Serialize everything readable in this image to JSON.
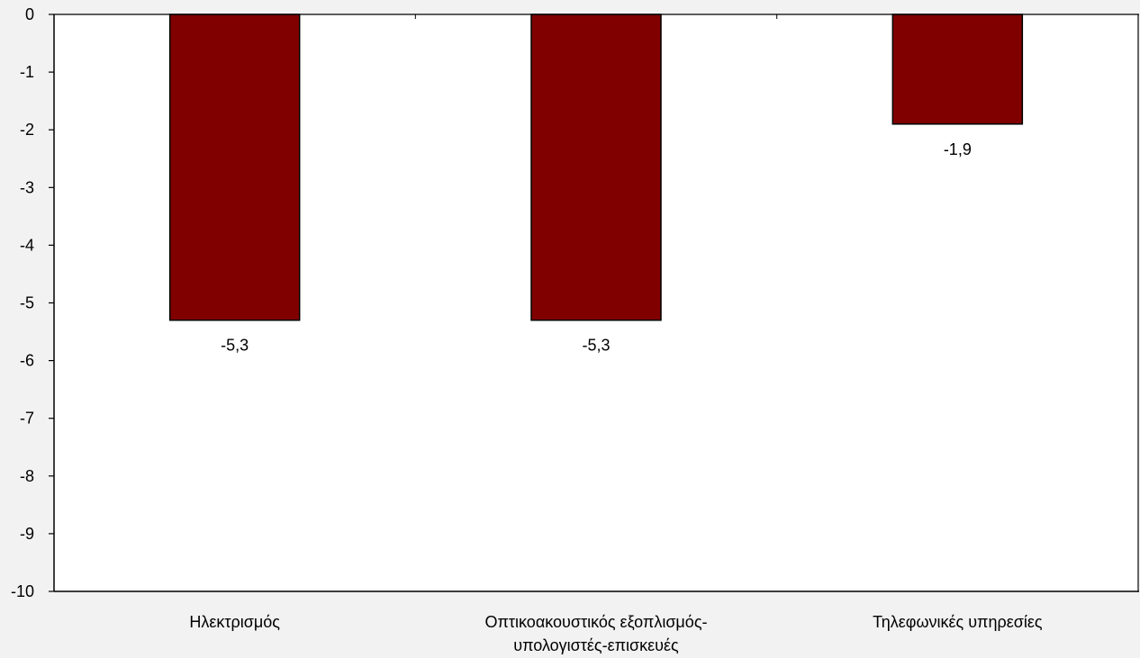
{
  "chart_data": {
    "type": "bar",
    "categories": [
      [
        "Ηλεκτρισμός"
      ],
      [
        "Οπτικοακουστικός εξοπλισμός-",
        "υπολογιστές-επισκευές"
      ],
      [
        "Τηλεφωνικές υπηρεσίες"
      ]
    ],
    "values": [
      -5.3,
      -5.3,
      -1.9
    ],
    "data_labels": [
      "-5,3",
      "-5,3",
      "-1,9"
    ],
    "ylim": [
      -10,
      0
    ],
    "yticks": [
      0,
      -1,
      -2,
      -3,
      -4,
      -5,
      -6,
      -7,
      -8,
      -9,
      -10
    ],
    "ytick_labels": [
      "0",
      "-1",
      "-2",
      "-3",
      "-4",
      "-5",
      "-6",
      "-7",
      "-8",
      "-9",
      "-10"
    ],
    "grid": false,
    "bar_color": "#800000",
    "bar_edge_color": "#000000",
    "plot_background": "#ffffff",
    "page_background": "#f2f2f2"
  }
}
